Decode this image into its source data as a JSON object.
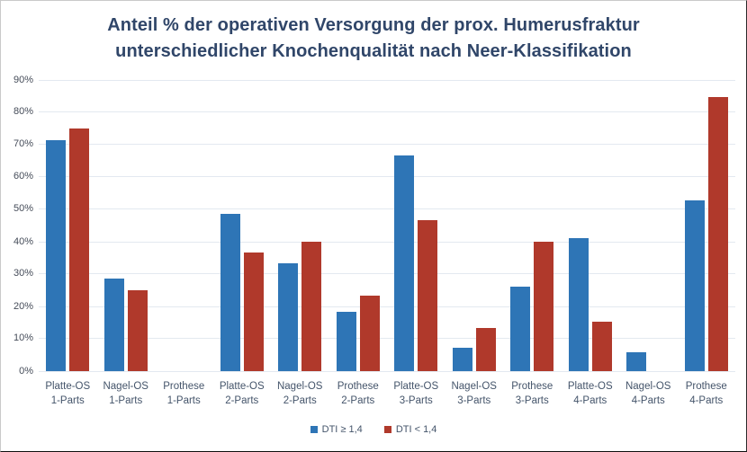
{
  "header": {
    "title_line1": "Anteil % der operativen Versorgung der prox. Humerusfraktur",
    "title_line2": "unterschiedlicher Knochenqualität nach Neer-Klassifikation"
  },
  "colors": {
    "series_blue": "#2E75B6",
    "series_red": "#B0392B",
    "title_text": "#304669",
    "axis_text": "#454C59",
    "category_text": "#44546A",
    "gridline": "#E3E9F0",
    "background": "#FFFFFF"
  },
  "chart_data": {
    "type": "bar",
    "title": "Anteil % der operativen Versorgung der prox. Humerusfraktur unterschiedlicher Knochenqualität nach Neer-Klassifikation",
    "categories": [
      "Platte-OS\n1-Parts",
      "Nagel-OS\n1-Parts",
      "Prothese\n1-Parts",
      "Platte-OS\n2-Parts",
      "Nagel-OS\n2-Parts",
      "Prothese\n2-Parts",
      "Platte-OS\n3-Parts",
      "Nagel-OS\n3-Parts",
      "Prothese\n3-Parts",
      "Platte-OS\n4-Parts",
      "Nagel-OS\n4-Parts",
      "Prothese\n4-Parts"
    ],
    "series": [
      {
        "name": "DTI ≥ 1,4",
        "key": "dti-ge-1-4",
        "color": "#2E75B6",
        "values": [
          71.4,
          28.6,
          0,
          48.5,
          33.3,
          18.2,
          66.7,
          7.1,
          26.2,
          41.2,
          5.9,
          52.9
        ]
      },
      {
        "name": "DTI < 1,4",
        "key": "dti-lt-1-4",
        "color": "#B0392B",
        "values": [
          75,
          25,
          0,
          36.7,
          40,
          23.3,
          46.7,
          13.3,
          40,
          15.4,
          0,
          84.6
        ]
      }
    ],
    "xlabel": "",
    "ylabel": "",
    "ylim": [
      0,
      90
    ],
    "ytick_labels": [
      "0%",
      "10%",
      "20%",
      "30%",
      "40%",
      "50%",
      "60%",
      "70%",
      "80%",
      "90%"
    ],
    "grid": true,
    "legend_position": "bottom"
  }
}
